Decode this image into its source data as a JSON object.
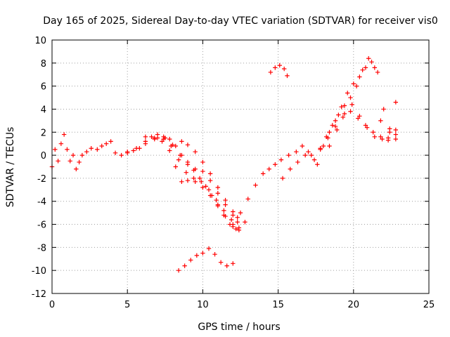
{
  "chart_data": {
    "type": "scatter",
    "title": "Day 165 of 2025, Sidereal Day-to-day VTEC variation (SDTVAR) for receiver vis0",
    "xlabel": "GPS time / hours",
    "ylabel": "SDTVAR / TECUs",
    "xlim": [
      0,
      25
    ],
    "ylim": [
      -12,
      10
    ],
    "x_ticks": [
      "0",
      "5",
      "10",
      "15",
      "20",
      "25"
    ],
    "y_ticks": [
      "-12",
      "-10",
      "-8",
      "-6",
      "-4",
      "-2",
      "0",
      "2",
      "4",
      "6",
      "8",
      "10"
    ],
    "grid": true,
    "marker": "plus",
    "color": "#ff0000",
    "series": [
      {
        "x": [
          0.0,
          0.2,
          0.4,
          0.6,
          0.8,
          1.0,
          1.2,
          1.4,
          1.6,
          1.8,
          2.0,
          2.3,
          2.6,
          3.0,
          3.3,
          3.6,
          3.9,
          4.2,
          4.6,
          5.0,
          5.4,
          5.8,
          6.2,
          6.6,
          7.0,
          7.4,
          7.8,
          8.2,
          8.6,
          9.0,
          9.4,
          9.8,
          10.2,
          10.6,
          11.0,
          11.4,
          11.8,
          12.2
        ],
        "y": [
          -1.0,
          0.5,
          -0.5,
          1.0,
          1.8,
          0.5,
          -0.5,
          0.0,
          -1.2,
          -0.6,
          0.0,
          0.3,
          0.6,
          0.5,
          0.8,
          1.0,
          1.2,
          0.2,
          0.0,
          0.3,
          0.4,
          0.6,
          1.0,
          1.6,
          1.5,
          1.6,
          1.4,
          0.8,
          0.0,
          -0.6,
          -1.3,
          -2.0,
          -2.7,
          -3.5,
          -4.3,
          -5.2,
          -6.0,
          -6.4
        ]
      },
      {
        "x": [
          5.0,
          5.6,
          6.2,
          6.8,
          7.3,
          7.8,
          8.2,
          8.6,
          9.0,
          9.5,
          10.0,
          10.5,
          11.0,
          11.5,
          12.0,
          12.4,
          12.8
        ],
        "y": [
          0.2,
          0.6,
          1.2,
          1.4,
          1.2,
          0.4,
          -1.0,
          -2.3,
          -2.2,
          -2.3,
          -2.8,
          -3.5,
          -4.4,
          -5.3,
          -6.0,
          -6.5,
          -5.8
        ]
      },
      {
        "x": [
          6.2,
          6.8,
          7.4,
          7.9,
          8.4,
          8.9,
          9.4,
          9.9,
          10.4,
          10.9,
          11.4,
          11.9,
          12.4
        ],
        "y": [
          1.6,
          1.5,
          1.4,
          0.8,
          -0.4,
          -1.5,
          -2.0,
          -2.3,
          -3.0,
          -3.9,
          -4.8,
          -5.6,
          -6.3
        ]
      },
      {
        "x": [
          7.0,
          7.5,
          8.0,
          8.5,
          9.0,
          9.5,
          10.0,
          10.5,
          11.0,
          11.5,
          12.0,
          12.3
        ],
        "y": [
          1.8,
          1.5,
          0.9,
          0.0,
          -0.8,
          -1.2,
          -1.4,
          -2.2,
          -3.3,
          -4.3,
          -5.2,
          -5.8
        ]
      },
      {
        "x": [
          8.6,
          9.0,
          9.5,
          10.0,
          10.5,
          11.0,
          11.5,
          12.0,
          12.3
        ],
        "y": [
          1.2,
          0.9,
          0.3,
          -0.6,
          -1.6,
          -2.8,
          -3.9,
          -4.9,
          -5.4
        ]
      },
      {
        "x": [
          8.4,
          8.8,
          9.2,
          9.6,
          10.0,
          10.4,
          10.8,
          11.2,
          11.6,
          12.0
        ],
        "y": [
          -10.0,
          -9.6,
          -9.1,
          -8.7,
          -8.5,
          -8.1,
          -8.6,
          -9.3,
          -9.6,
          -9.4
        ]
      },
      {
        "x": [
          12.0,
          12.5,
          13.0,
          13.5,
          14.0,
          14.4,
          14.8,
          15.2,
          15.7,
          16.2,
          16.6,
          17.0,
          17.4,
          17.8,
          18.2,
          18.6,
          19.0,
          19.4,
          19.8,
          20.2,
          20.6,
          21.0,
          21.4,
          21.8,
          22.3,
          22.8
        ],
        "y": [
          -6.2,
          -5.0,
          -3.8,
          -2.6,
          -1.6,
          -1.2,
          -0.8,
          -0.4,
          0.0,
          0.3,
          0.8,
          0.3,
          -0.4,
          0.6,
          1.6,
          2.6,
          3.5,
          4.3,
          5.0,
          6.0,
          7.4,
          8.4,
          7.6,
          3.0,
          1.5,
          2.2
        ]
      },
      {
        "x": [
          15.3,
          15.8,
          16.3,
          16.8,
          17.2,
          17.6,
          18.0,
          18.4,
          18.8,
          19.2,
          19.6,
          20.0,
          20.4,
          20.8,
          21.2,
          21.6,
          22.0,
          22.4,
          22.8
        ],
        "y": [
          -2.0,
          -1.2,
          -0.6,
          0.0,
          0.0,
          -0.8,
          0.8,
          2.0,
          3.0,
          4.2,
          5.4,
          6.2,
          6.8,
          7.6,
          8.1,
          7.2,
          4.0,
          2.3,
          1.4
        ]
      },
      {
        "x": [
          17.8,
          18.3,
          18.8,
          19.3,
          19.8,
          20.3,
          20.8,
          21.3,
          21.8,
          22.3,
          22.8
        ],
        "y": [
          0.5,
          1.5,
          2.5,
          3.3,
          3.8,
          3.2,
          2.6,
          2.0,
          1.6,
          1.3,
          1.8
        ]
      },
      {
        "x": [
          18.4,
          18.9,
          19.4,
          19.9,
          20.4,
          20.9,
          21.4,
          21.9,
          22.4,
          22.8
        ],
        "y": [
          0.8,
          2.2,
          3.6,
          4.4,
          3.4,
          2.4,
          1.6,
          1.4,
          2.0,
          4.6
        ]
      },
      {
        "x": [
          14.5,
          14.8,
          15.1,
          15.4,
          15.6
        ],
        "y": [
          7.2,
          7.6,
          7.8,
          7.5,
          6.9
        ]
      }
    ]
  }
}
